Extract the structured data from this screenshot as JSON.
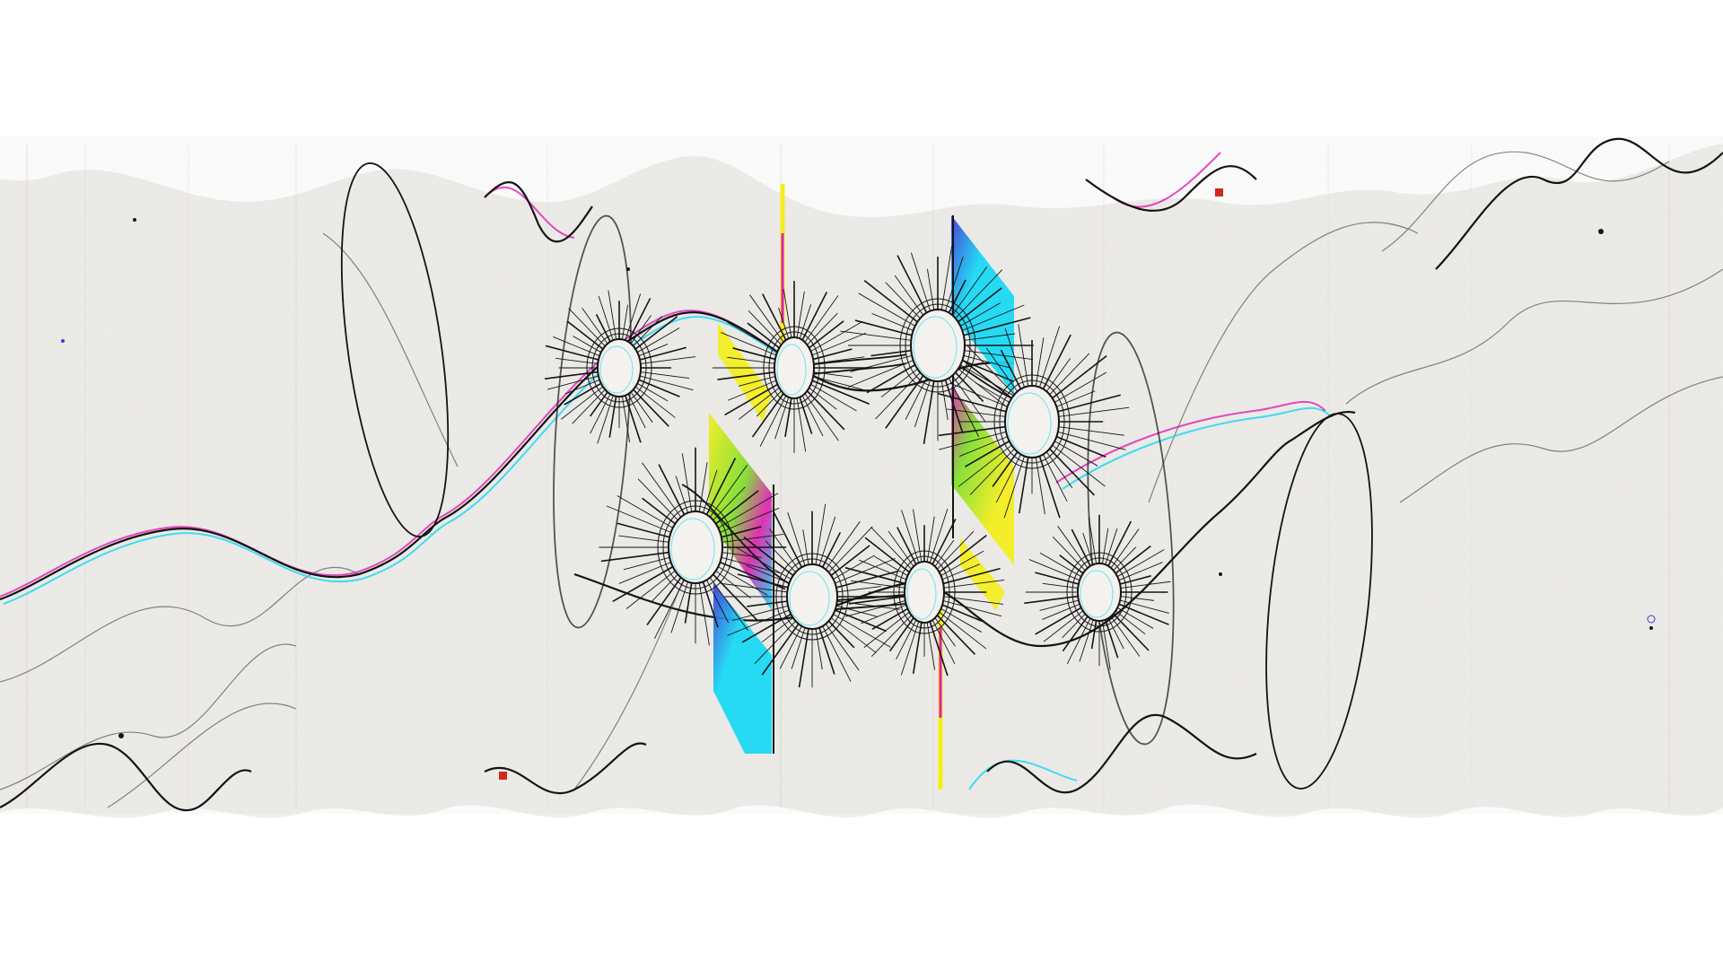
{
  "artwork": {
    "description_free": true,
    "palette": {
      "paper": "#efeeea",
      "paper_shadow": "#e3e2dc",
      "ink": "#141414",
      "cyan": "#14d8f5",
      "yellow": "#f4ee1a",
      "magenta": "#e020b0",
      "green": "#7dde2c",
      "blue": "#3a38d8",
      "red_dot": "#d02a1a"
    },
    "icons": [
      "burst-motif",
      "wave-line",
      "ellipse-loop",
      "spectrum-ribbon"
    ]
  }
}
